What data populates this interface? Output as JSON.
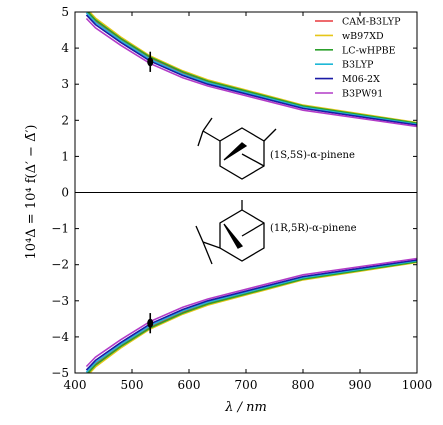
{
  "chart_data": {
    "type": "line",
    "xlabel": "λ / nm",
    "ylabel": "10⁴Δ = 10⁴ f(Δ′ − Δ̄′)",
    "xlim": [
      400,
      1000
    ],
    "ylim": [
      -5,
      5
    ],
    "x_ticks": [
      400,
      500,
      600,
      700,
      800,
      900,
      1000
    ],
    "y_ticks": [
      -5,
      -4,
      -3,
      -2,
      -1,
      0,
      1,
      2,
      3,
      4,
      5
    ],
    "grid": false,
    "legend_position": "top-right",
    "annotations": [
      {
        "text": "(1S,5S)-α-pinene"
      },
      {
        "text": "(1R,5R)-α-pinene"
      }
    ],
    "experimental_points": [
      {
        "x": 532,
        "y": 3.62,
        "error": 0.28
      },
      {
        "x": 532,
        "y": -3.62,
        "error": 0.28
      }
    ],
    "x": [
      420,
      436,
      480,
      532,
      589,
      633,
      800,
      1000
    ],
    "series": [
      {
        "name": "CAM-B3LYP",
        "color": "#e8383d",
        "upper": [
          5.02,
          4.75,
          4.24,
          3.72,
          3.31,
          3.07,
          2.38,
          1.91
        ],
        "lower": [
          -5.02,
          -4.75,
          -4.24,
          -3.72,
          -3.31,
          -3.07,
          -2.38,
          -1.91
        ]
      },
      {
        "name": "wB97XD",
        "color": "#e6c619",
        "upper": [
          5.1,
          4.83,
          4.31,
          3.78,
          3.37,
          3.12,
          2.42,
          1.94
        ],
        "lower": [
          -5.1,
          -4.83,
          -4.31,
          -3.78,
          -3.37,
          -3.12,
          -2.42,
          -1.94
        ]
      },
      {
        "name": "LC-wHPBE",
        "color": "#2ca02c",
        "upper": [
          5.05,
          4.78,
          4.27,
          3.75,
          3.34,
          3.09,
          2.4,
          1.92
        ],
        "lower": [
          -5.05,
          -4.78,
          -4.27,
          -3.75,
          -3.34,
          -3.09,
          -2.4,
          -1.92
        ]
      },
      {
        "name": "B3LYP",
        "color": "#1fb8d6",
        "upper": [
          4.98,
          4.71,
          4.21,
          3.69,
          3.28,
          3.04,
          2.36,
          1.89
        ],
        "lower": [
          -4.98,
          -4.71,
          -4.21,
          -3.69,
          -3.28,
          -3.04,
          -2.36,
          -1.89
        ]
      },
      {
        "name": "M06-2X",
        "color": "#1a1aa6",
        "upper": [
          4.92,
          4.65,
          4.16,
          3.64,
          3.24,
          3.0,
          2.33,
          1.87
        ],
        "lower": [
          -4.92,
          -4.65,
          -4.16,
          -3.64,
          -3.24,
          -3.0,
          -2.33,
          -1.87
        ]
      },
      {
        "name": "B3PW91",
        "color": "#b23bc7",
        "upper": [
          4.82,
          4.56,
          4.08,
          3.57,
          3.18,
          2.95,
          2.28,
          1.83
        ],
        "lower": [
          -4.82,
          -4.56,
          -4.08,
          -3.57,
          -3.18,
          -2.95,
          -2.28,
          -1.83
        ]
      }
    ]
  }
}
